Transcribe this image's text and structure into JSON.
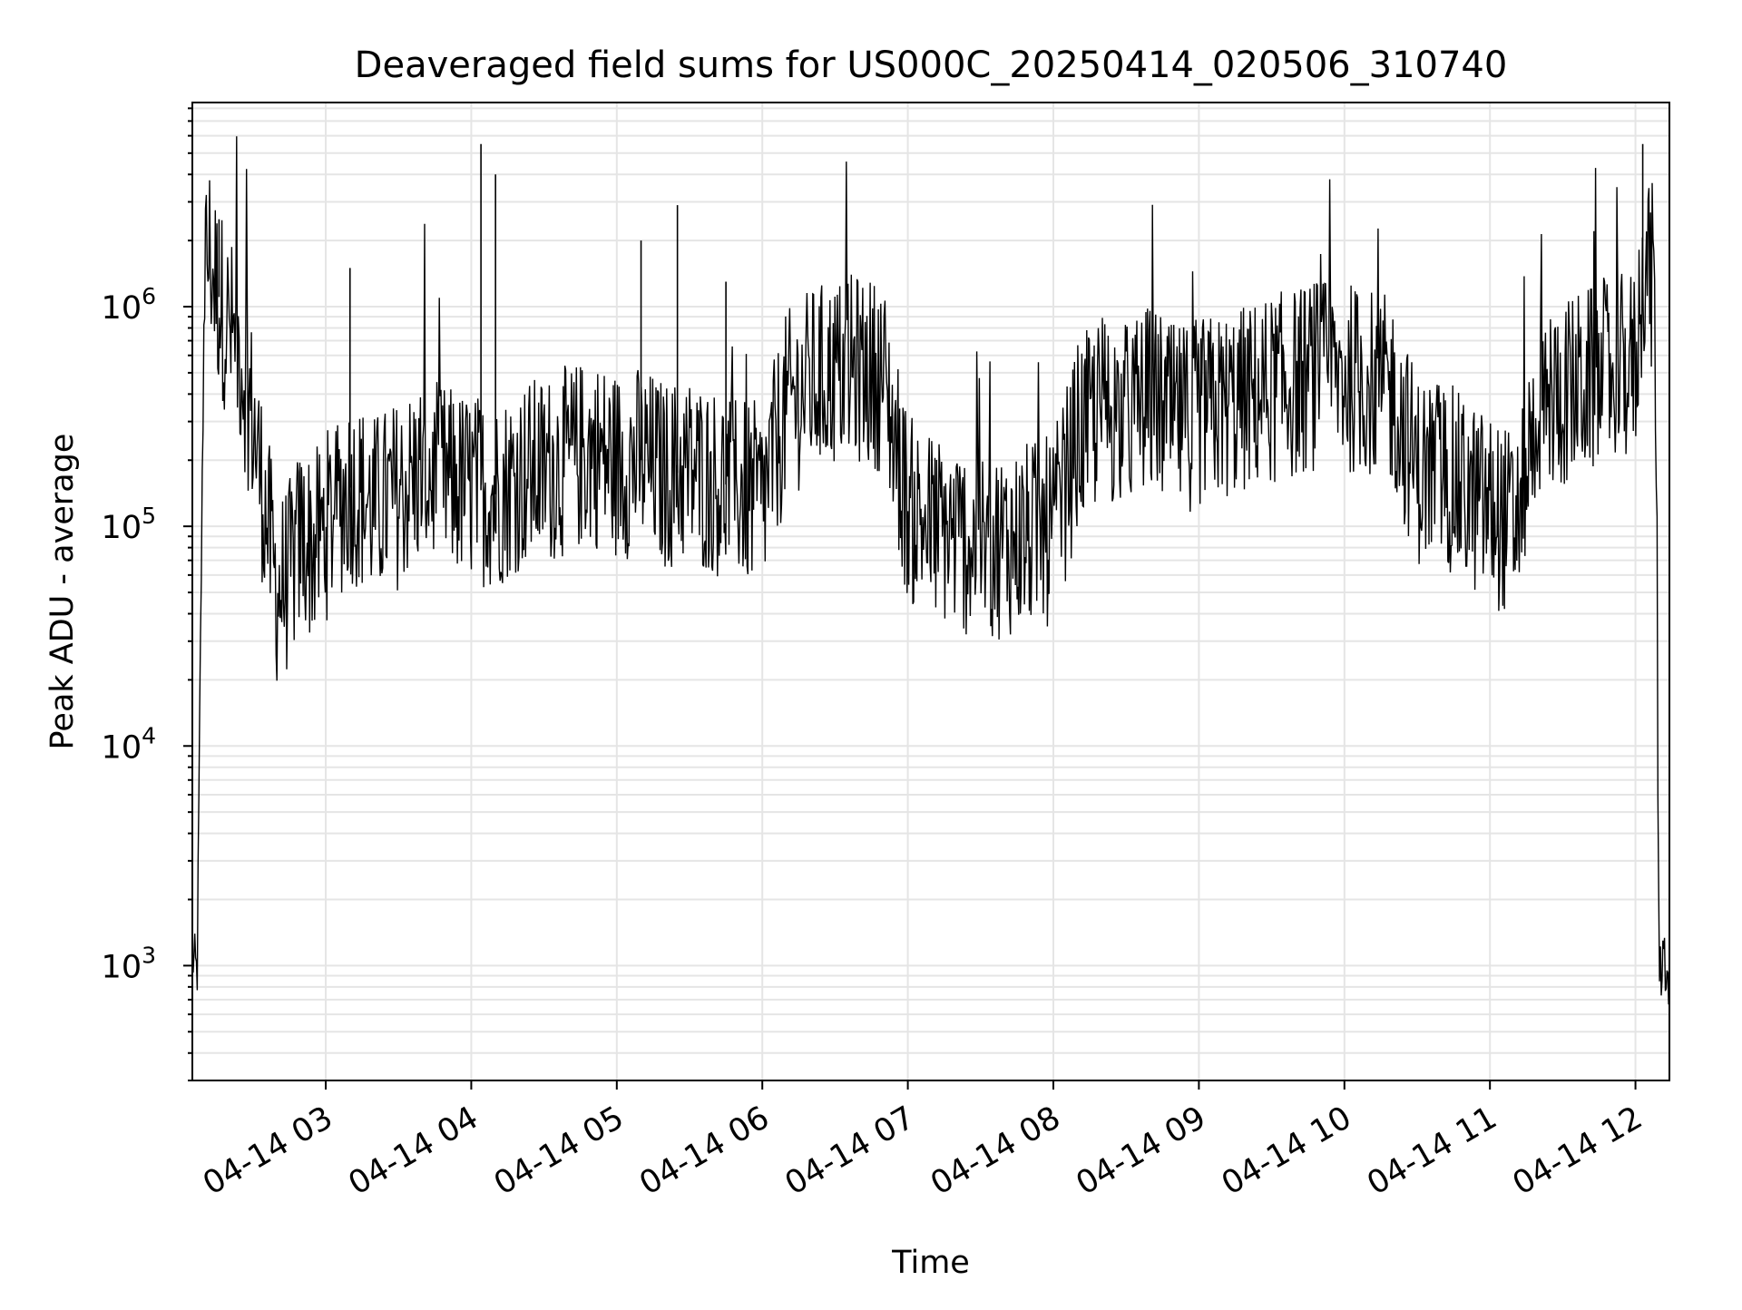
{
  "chart_data": {
    "type": "line",
    "title": "Deaveraged field sums for US000C_20250414_020506_310740",
    "xlabel": "Time",
    "ylabel": "Peak ADU - average",
    "yscale": "log",
    "ylim": [
      300,
      8500000
    ],
    "xlim": [
      "2025-04-14T02:05:00",
      "2025-04-14T12:14:00"
    ],
    "x_tick_labels": [
      "04-14 03",
      "04-14 04",
      "04-14 05",
      "04-14 06",
      "04-14 07",
      "04-14 08",
      "04-14 09",
      "04-14 10",
      "04-14 11",
      "04-14 12"
    ],
    "y_tick_labels": [
      {
        "value": 1000,
        "base": "10",
        "exp": "3"
      },
      {
        "value": 10000,
        "base": "10",
        "exp": "4"
      },
      {
        "value": 100000,
        "base": "10",
        "exp": "5"
      },
      {
        "value": 1000000,
        "base": "10",
        "exp": "6"
      }
    ],
    "grid": true,
    "line_color": "#000000",
    "grid_color": "#e5e5e5",
    "series": [
      {
        "x": [
          "2025-04-14T02:05:00",
          "2025-04-14T02:07:00",
          "2025-04-14T02:10:00",
          "2025-04-14T02:12:00",
          "2025-04-14T02:15:00",
          "2025-04-14T02:20:00",
          "2025-04-14T02:25:00",
          "2025-04-14T02:30:00",
          "2025-04-14T02:35:00",
          "2025-04-14T02:40:00",
          "2025-04-14T02:45:00",
          "2025-04-14T02:50:00",
          "2025-04-14T02:55:00",
          "2025-04-14T03:00:00",
          "2025-04-14T03:10:00",
          "2025-04-14T03:20:00",
          "2025-04-14T03:30:00",
          "2025-04-14T03:40:00",
          "2025-04-14T03:50:00",
          "2025-04-14T04:00:00",
          "2025-04-14T04:10:00",
          "2025-04-14T04:20:00",
          "2025-04-14T04:30:00",
          "2025-04-14T04:40:00",
          "2025-04-14T04:50:00",
          "2025-04-14T05:00:00",
          "2025-04-14T05:10:00",
          "2025-04-14T05:20:00",
          "2025-04-14T05:30:00",
          "2025-04-14T05:40:00",
          "2025-04-14T05:50:00",
          "2025-04-14T06:00:00",
          "2025-04-14T06:10:00",
          "2025-04-14T06:20:00",
          "2025-04-14T06:30:00",
          "2025-04-14T06:40:00",
          "2025-04-14T06:50:00",
          "2025-04-14T07:00:00",
          "2025-04-14T07:10:00",
          "2025-04-14T07:20:00",
          "2025-04-14T07:30:00",
          "2025-04-14T07:40:00",
          "2025-04-14T07:50:00",
          "2025-04-14T08:00:00",
          "2025-04-14T08:10:00",
          "2025-04-14T08:20:00",
          "2025-04-14T08:30:00",
          "2025-04-14T08:40:00",
          "2025-04-14T08:50:00",
          "2025-04-14T09:00:00",
          "2025-04-14T09:10:00",
          "2025-04-14T09:20:00",
          "2025-04-14T09:30:00",
          "2025-04-14T09:40:00",
          "2025-04-14T09:50:00",
          "2025-04-14T10:00:00",
          "2025-04-14T10:10:00",
          "2025-04-14T10:20:00",
          "2025-04-14T10:30:00",
          "2025-04-14T10:40:00",
          "2025-04-14T10:50:00",
          "2025-04-14T11:00:00",
          "2025-04-14T11:10:00",
          "2025-04-14T11:20:00",
          "2025-04-14T11:30:00",
          "2025-04-14T11:40:00",
          "2025-04-14T11:50:00",
          "2025-04-14T12:00:00",
          "2025-04-14T12:04:00",
          "2025-04-14T12:08:00",
          "2025-04-14T12:10:00",
          "2025-04-14T12:14:00"
        ],
        "y": [
          1100,
          900,
          1500000,
          1800000,
          1200000,
          800000,
          600000,
          300000,
          120000,
          50000,
          60000,
          90000,
          80000,
          100000,
          150000,
          120000,
          140000,
          180000,
          160000,
          150000,
          140000,
          170000,
          180000,
          200000,
          220000,
          190000,
          200000,
          170000,
          180000,
          160000,
          150000,
          130000,
          350000,
          450000,
          500000,
          520000,
          480000,
          120000,
          100000,
          90000,
          80000,
          85000,
          90000,
          95000,
          250000,
          350000,
          320000,
          380000,
          300000,
          330000,
          350000,
          380000,
          420000,
          450000,
          500000,
          480000,
          450000,
          400000,
          180000,
          180000,
          140000,
          120000,
          100000,
          350000,
          400000,
          450000,
          500000,
          550000,
          1800000,
          1200000,
          1000,
          900
        ],
        "spikes_x": [
          "2025-04-14T04:04:00",
          "2025-04-14T04:10:00",
          "2025-04-14T05:10:00",
          "2025-04-14T05:25:00",
          "2025-04-14T02:16:00",
          "2025-04-14T03:10:00",
          "2025-04-14T05:45:00",
          "2025-04-14T12:03:00"
        ],
        "spikes_y": [
          5500000,
          4000000,
          2000000,
          2900000,
          2500000,
          1500000,
          1300000,
          5500000
        ]
      }
    ]
  }
}
